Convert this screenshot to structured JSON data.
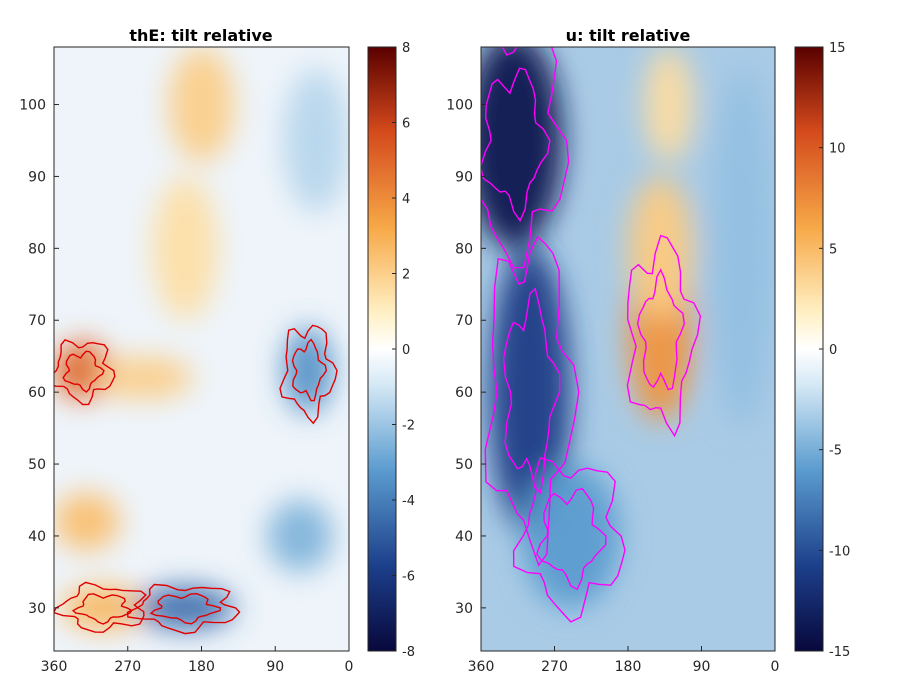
{
  "chart_data": [
    {
      "type": "heatmap",
      "title": "thE: tilt relative",
      "xlabel": "",
      "ylabel": "",
      "xlim": [
        360,
        0
      ],
      "ylim": [
        24,
        108
      ],
      "xticks": [
        360,
        270,
        180,
        90,
        0
      ],
      "xtick_labels": [
        "360",
        "270",
        "180",
        "90",
        "0"
      ],
      "yticks": [
        30,
        40,
        50,
        60,
        70,
        80,
        90,
        100
      ],
      "ytick_labels": [
        "30",
        "40",
        "50",
        "60",
        "70",
        "80",
        "90",
        "100"
      ],
      "colorbar": {
        "range": [
          -8,
          8
        ],
        "ticks": [
          -8,
          -6,
          -4,
          -2,
          0,
          2,
          4,
          6,
          8
        ],
        "tick_labels": [
          "-8",
          "-6",
          "-4",
          "-2",
          "0",
          "2",
          "4",
          "6",
          "8"
        ],
        "colormap": "blue-white-red"
      },
      "contour_color": "#e00000",
      "features": [
        {
          "lon": 325,
          "lat": 63,
          "value": 5.0,
          "wlon": 35,
          "wlat": 4
        },
        {
          "lon": 250,
          "lat": 62,
          "value": 2.0,
          "wlon": 60,
          "wlat": 3
        },
        {
          "lon": 180,
          "lat": 100,
          "value": 2.0,
          "wlon": 40,
          "wlat": 8
        },
        {
          "lon": 200,
          "lat": 80,
          "value": 1.5,
          "wlon": 40,
          "wlat": 10
        },
        {
          "lon": 320,
          "lat": 42,
          "value": 2.5,
          "wlon": 40,
          "wlat": 4
        },
        {
          "lon": 300,
          "lat": 30,
          "value": 2.8,
          "wlon": 50,
          "wlat": 3
        },
        {
          "lon": 200,
          "lat": 30,
          "value": -4.5,
          "wlon": 60,
          "wlat": 3
        },
        {
          "lon": 50,
          "lat": 63,
          "value": -3.5,
          "wlon": 30,
          "wlat": 6
        },
        {
          "lon": 60,
          "lat": 40,
          "value": -2.5,
          "wlon": 40,
          "wlat": 5
        },
        {
          "lon": 40,
          "lat": 95,
          "value": -1.5,
          "wlon": 40,
          "wlat": 10
        }
      ]
    },
    {
      "type": "heatmap",
      "title": "u: tilt relative",
      "xlabel": "",
      "ylabel": "",
      "xlim": [
        360,
        0
      ],
      "ylim": [
        24,
        108
      ],
      "xticks": [
        360,
        270,
        180,
        90,
        0
      ],
      "xtick_labels": [
        "360",
        "270",
        "180",
        "90",
        "0"
      ],
      "yticks": [
        30,
        40,
        50,
        60,
        70,
        80,
        90,
        100
      ],
      "ytick_labels": [
        "30",
        "40",
        "50",
        "60",
        "70",
        "80",
        "90",
        "100"
      ],
      "colorbar": {
        "range": [
          -15,
          15
        ],
        "ticks": [
          -15,
          -10,
          -5,
          0,
          5,
          10,
          15
        ],
        "tick_labels": [
          "-15",
          "-10",
          "-5",
          "0",
          "5",
          "10",
          "15"
        ],
        "colormap": "blue-white-red"
      },
      "contour_color": "#ff00ff",
      "features": [
        {
          "lon": 320,
          "lat": 95,
          "value": -14.0,
          "wlon": 60,
          "wlat": 15
        },
        {
          "lon": 300,
          "lat": 60,
          "value": -11.0,
          "wlon": 50,
          "wlat": 20
        },
        {
          "lon": 140,
          "lat": 68,
          "value": 7.0,
          "wlon": 40,
          "wlat": 12
        },
        {
          "lon": 140,
          "lat": 80,
          "value": 4.0,
          "wlon": 40,
          "wlat": 10
        },
        {
          "lon": 130,
          "lat": 100,
          "value": 3.0,
          "wlon": 30,
          "wlat": 8
        },
        {
          "lon": 40,
          "lat": 80,
          "value": -4.0,
          "wlon": 40,
          "wlat": 25
        },
        {
          "lon": 250,
          "lat": 40,
          "value": -6.0,
          "wlon": 60,
          "wlat": 10
        }
      ]
    }
  ]
}
